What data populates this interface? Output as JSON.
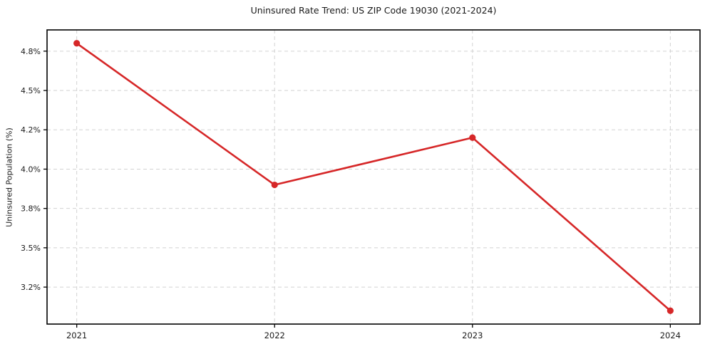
{
  "chart_data": {
    "type": "line",
    "title": "Uninsured Rate Trend: US ZIP Code 19030 (2021-2024)",
    "xlabel": "",
    "ylabel": "Uninsured Population (%)",
    "categories": [
      2021,
      2022,
      2023,
      2024
    ],
    "series": [
      {
        "name": "Uninsured rate",
        "values": [
          4.8,
          3.9,
          4.2,
          3.1
        ],
        "color": "#d62728",
        "marker": "circle"
      }
    ],
    "xlim": [
      2020.85,
      2024.15
    ],
    "ylim": [
      3.015,
      4.885
    ],
    "x_ticks": [
      {
        "value": 2021,
        "label": "2021"
      },
      {
        "value": 2022,
        "label": "2022"
      },
      {
        "value": 2023,
        "label": "2023"
      },
      {
        "value": 2024,
        "label": "2024"
      }
    ],
    "y_ticks": [
      {
        "value": 3.25,
        "label": "3.2%"
      },
      {
        "value": 3.5,
        "label": "3.5%"
      },
      {
        "value": 3.75,
        "label": "3.8%"
      },
      {
        "value": 4.0,
        "label": "4.0%"
      },
      {
        "value": 4.25,
        "label": "4.2%"
      },
      {
        "value": 4.5,
        "label": "4.5%"
      },
      {
        "value": 4.75,
        "label": "4.8%"
      }
    ],
    "grid": true,
    "grid_style": "dashed",
    "legend": "none",
    "colors": {
      "line": "#d62728",
      "marker": "#d62728",
      "grid": "#d2d2d2",
      "spine": "#000000",
      "text": "#1a1a1a",
      "background": "#ffffff"
    }
  }
}
